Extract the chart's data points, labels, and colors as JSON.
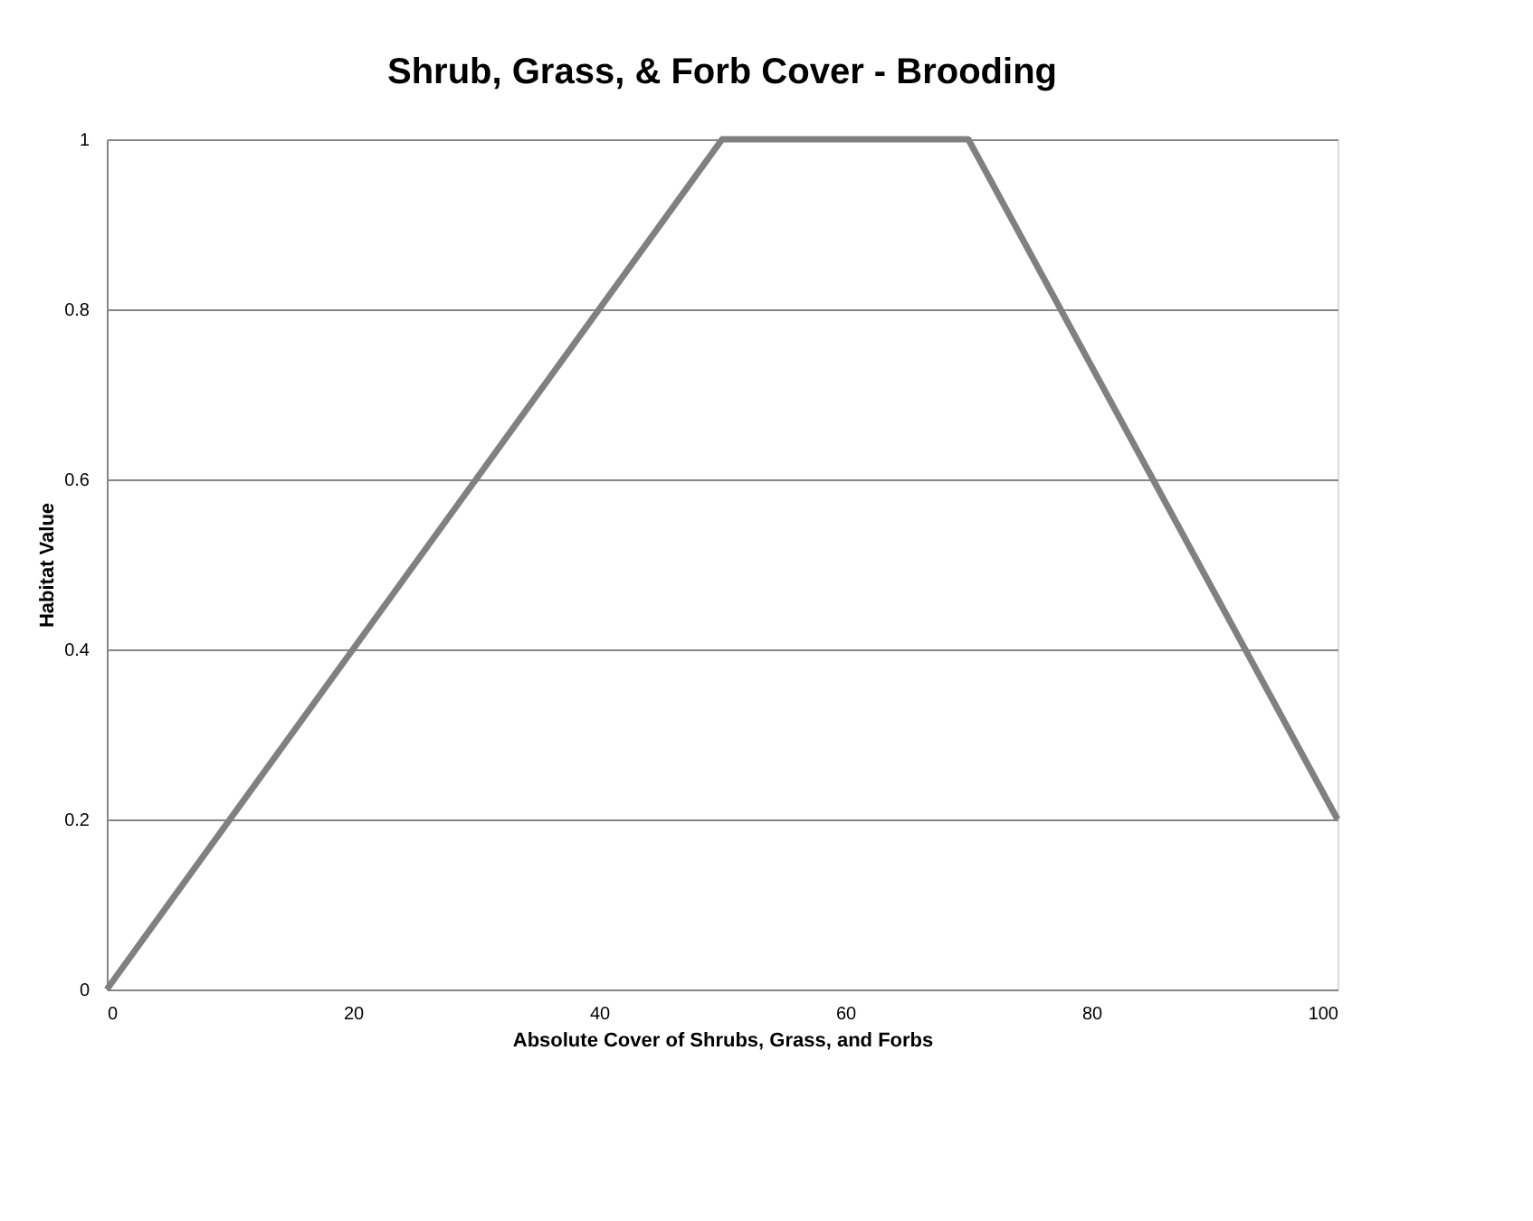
{
  "chart_data": {
    "type": "line",
    "title": "Shrub, Grass, & Forb Cover - Brooding",
    "xlabel": "Absolute Cover of Shrubs, Grass, and Forbs",
    "ylabel": "Habitat Value",
    "x": [
      0,
      50,
      70,
      100
    ],
    "series": [
      {
        "color": "#808080",
        "values": [
          0,
          1,
          1,
          0.2
        ]
      }
    ],
    "xlim": [
      0,
      100
    ],
    "xticks": [
      0,
      20,
      40,
      60,
      80,
      100
    ],
    "ylim": [
      0,
      1
    ],
    "yticks": [
      0,
      0.2,
      0.4,
      0.6,
      0.8,
      1
    ],
    "grid": "y",
    "marker": "none",
    "line_style": "solid"
  }
}
